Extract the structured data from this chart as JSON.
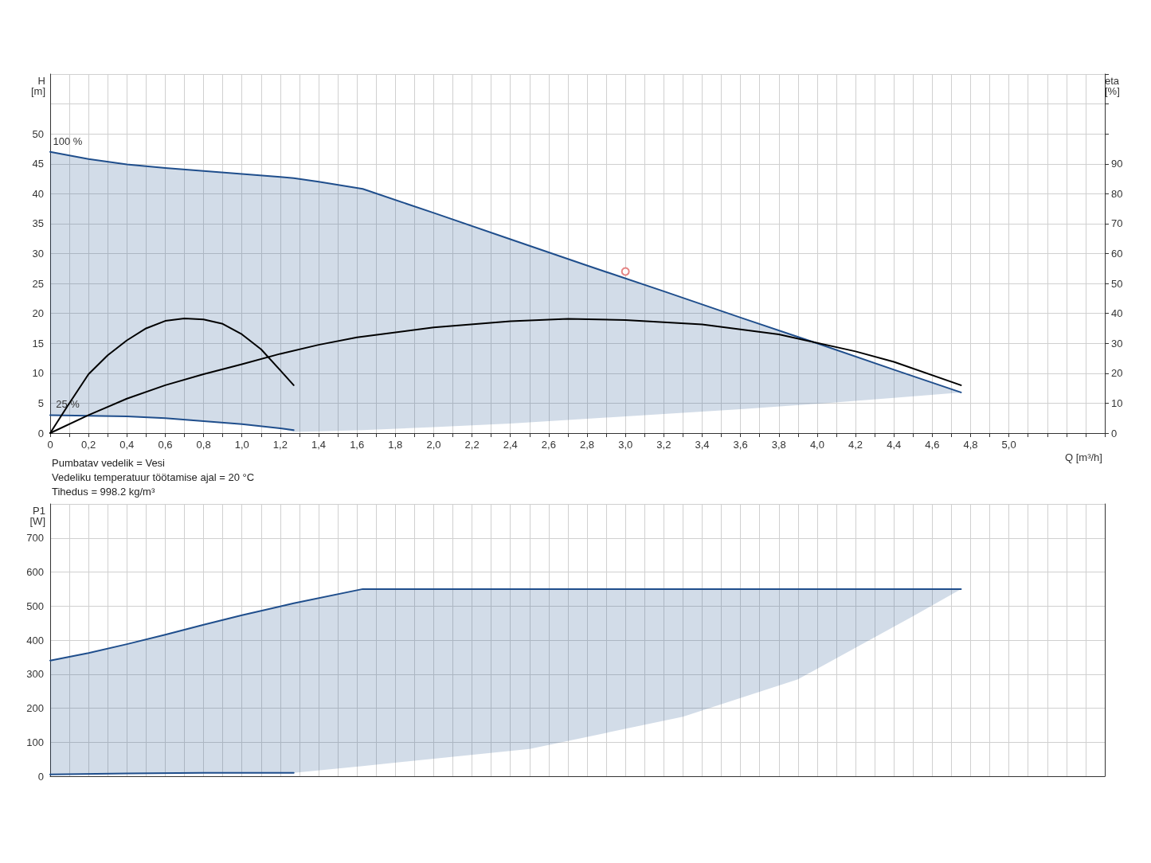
{
  "chart_data": [
    {
      "type": "line",
      "xlabel": "Q [m³/h]",
      "ylabel": "H\n[m]",
      "y2label": "eta\n[%]",
      "grid": true,
      "xlim": [
        0,
        5.5
      ],
      "xticks": [
        0,
        {
          "value": 0.2,
          "label": "0,2"
        },
        {
          "value": 0.4,
          "label": "0,4"
        },
        {
          "value": 0.6,
          "label": "0,6"
        },
        {
          "value": 0.8,
          "label": "0,8"
        },
        {
          "value": 1.0,
          "label": "1,0"
        },
        {
          "value": 1.2,
          "label": "1,2"
        },
        {
          "value": 1.4,
          "label": "1,4"
        },
        {
          "value": 1.6,
          "label": "1,6"
        },
        {
          "value": 1.8,
          "label": "1,8"
        },
        {
          "value": 2.0,
          "label": "2,0"
        },
        {
          "value": 2.2,
          "label": "2,2"
        },
        {
          "value": 2.4,
          "label": "2,4"
        },
        {
          "value": 2.6,
          "label": "2,6"
        },
        {
          "value": 2.8,
          "label": "2,8"
        },
        {
          "value": 3.0,
          "label": "3,0"
        },
        {
          "value": 3.2,
          "label": "3,2"
        },
        {
          "value": 3.4,
          "label": "3,4"
        },
        {
          "value": 3.6,
          "label": "3,6"
        },
        {
          "value": 3.8,
          "label": "3,8"
        },
        {
          "value": 4.0,
          "label": "4,0"
        },
        {
          "value": 4.2,
          "label": "4,2"
        },
        {
          "value": 4.4,
          "label": "4,4"
        },
        {
          "value": 4.6,
          "label": "4,6"
        },
        {
          "value": 4.8,
          "label": "4,8"
        },
        {
          "value": 5.0,
          "label": "5,0"
        }
      ],
      "ylim": [
        0,
        60
      ],
      "yticks": [
        0,
        5,
        10,
        15,
        20,
        25,
        30,
        35,
        40,
        45,
        50
      ],
      "y2lim": [
        0,
        120
      ],
      "y2ticks": [
        0,
        10,
        20,
        30,
        40,
        50,
        60,
        70,
        80,
        90
      ],
      "series": [
        {
          "name": "100 %",
          "color": "#1f4e8c",
          "x": [
            0,
            0.2,
            0.4,
            0.6,
            0.8,
            1.0,
            1.2,
            1.27,
            1.4,
            1.63,
            2.0,
            2.4,
            2.8,
            3.2,
            3.6,
            4.0,
            4.4,
            4.75
          ],
          "values": [
            47,
            45.8,
            44.9,
            44.3,
            43.8,
            43.3,
            42.8,
            42.6,
            42.0,
            40.8,
            36.8,
            32.4,
            28.0,
            23.7,
            19.3,
            15.0,
            10.6,
            6.8
          ],
          "lower": [
            3.0,
            2.9,
            2.8,
            2.5,
            2.0,
            1.5,
            0.8,
            0.2,
            0.3,
            0.5,
            1.0,
            1.6,
            2.4,
            3.2,
            4.0,
            4.9,
            5.9,
            6.8
          ],
          "upper": [
            47,
            45.8,
            44.9,
            44.3,
            43.8,
            43.3,
            42.8,
            42.6,
            42.0,
            40.8,
            36.8,
            32.4,
            28.0,
            23.7,
            19.3,
            15.0,
            10.6,
            6.8
          ]
        },
        {
          "name": "25 %",
          "color": "#1f4e8c",
          "x": [
            0,
            0.2,
            0.4,
            0.6,
            0.8,
            1.0,
            1.2,
            1.27
          ],
          "values": [
            3.0,
            2.9,
            2.8,
            2.5,
            2.0,
            1.5,
            0.8,
            0.5
          ]
        },
        {
          "color": "#000000",
          "axis": "y2",
          "x": [
            0,
            0.1,
            0.2,
            0.3,
            0.4,
            0.5,
            0.6,
            0.7,
            0.8,
            0.9,
            1.0,
            1.1,
            1.2,
            1.27
          ],
          "values": [
            0,
            10,
            19.7,
            26,
            31,
            35,
            37.5,
            38.3,
            38,
            36.5,
            33,
            28,
            21,
            16
          ]
        },
        {
          "color": "#000000",
          "axis": "y2",
          "x": [
            0,
            0.2,
            0.4,
            0.6,
            0.8,
            1.0,
            1.2,
            1.4,
            1.6,
            2.0,
            2.4,
            2.7,
            3.0,
            3.4,
            3.8,
            4.2,
            4.4,
            4.75
          ],
          "values": [
            0,
            6,
            11.5,
            16,
            19.7,
            23,
            26.5,
            29.5,
            32,
            35.3,
            37.4,
            38.2,
            37.8,
            36.3,
            33,
            27.3,
            23.8,
            16
          ]
        },
        {
          "type": "scatter",
          "color": "#e06666",
          "x": [
            3.0
          ],
          "values": [
            27
          ]
        }
      ],
      "annotations": [
        "Pumbatav vedelik = Vesi",
        "Vedeliku temperatuur töötamise ajal = 20 °C",
        "Tihedus = 998.2 kg/m³"
      ]
    },
    {
      "type": "line",
      "ylabel": "P1\n[W]",
      "grid": true,
      "tick_labels": "y",
      "xlim": [
        0,
        5.5
      ],
      "xticks": [
        0,
        0.2,
        0.4,
        0.6,
        0.8,
        1.0,
        1.2,
        1.4,
        1.6,
        1.8,
        2.0,
        2.2,
        2.4,
        2.6,
        2.8,
        3.0,
        3.2,
        3.4,
        3.6,
        3.8,
        4.0,
        4.2,
        4.4,
        4.6,
        4.8,
        5.0
      ],
      "ylim": [
        0,
        800
      ],
      "yticks": [
        0,
        100,
        200,
        300,
        400,
        500,
        600,
        700
      ],
      "series": [
        {
          "color": "#1f4e8c",
          "x": [
            0,
            0.2,
            0.4,
            0.6,
            0.8,
            1.0,
            1.27,
            1.63,
            2.5,
            3.3,
            3.9,
            4.5,
            4.75
          ],
          "values": [
            340,
            362,
            388,
            416,
            445,
            473,
            508,
            550,
            550,
            550,
            550,
            550,
            550
          ],
          "lower": [
            5,
            6,
            8,
            9,
            10,
            10,
            10,
            30,
            80,
            175,
            285,
            470,
            550
          ],
          "upper": [
            340,
            362,
            388,
            416,
            445,
            473,
            508,
            550,
            550,
            550,
            550,
            550,
            550
          ]
        },
        {
          "color": "#1f4e8c",
          "x": [
            0,
            0.4,
            0.8,
            1.27
          ],
          "values": [
            5,
            8,
            10,
            10
          ]
        }
      ]
    }
  ]
}
